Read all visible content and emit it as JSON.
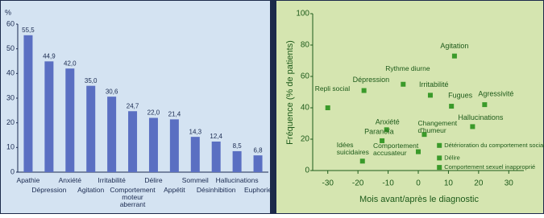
{
  "chart_data": [
    {
      "type": "bar",
      "ylabel": "%",
      "categories": [
        "Apathie",
        "Dépression",
        "Anxiété",
        "Agitation",
        "Irritabilité",
        "Comportement moteur aberrant",
        "Délire",
        "Appétit",
        "Sommeil",
        "Désinhibition",
        "Hallucinations",
        "Euphorie"
      ],
      "values": [
        55.5,
        44.9,
        42.0,
        35.0,
        30.6,
        24.7,
        22.0,
        21.4,
        14.3,
        12.4,
        8.5,
        6.8
      ],
      "value_labels": [
        "55,5",
        "44,9",
        "42,0",
        "35,0",
        "30,6",
        "24,7",
        "22,0",
        "21,4",
        "14,3",
        "12,4",
        "8,5",
        "6,8"
      ],
      "color": "#5a6fc2",
      "ylim": [
        0,
        60
      ],
      "yticks": [
        0,
        10,
        20,
        30,
        40,
        50,
        60
      ]
    },
    {
      "type": "scatter",
      "xlabel": "Mois avant/après le diagnostic",
      "ylabel": "Fréquence (% de patients)",
      "color": "#3a9a2a",
      "labels": [
        "Agitation",
        "Repli social",
        "Dépression",
        "Rythme diurne",
        "Irritabilité",
        "Fugues",
        "Agressivité",
        "Hallucinations",
        "Anxiété",
        "Changement d'humeur",
        "Paranoïa",
        "Idées suicidaires",
        "Comportement accusateur",
        "Détérioration du comportement social",
        "Délire",
        "Comportement sexuel inapproprié"
      ],
      "x": [
        12,
        -30,
        -18,
        -5,
        4,
        11,
        22,
        18,
        -10.5,
        2,
        -12,
        -18.5,
        0,
        7,
        7,
        7
      ],
      "values": [
        73,
        40,
        51,
        55,
        48,
        41,
        42,
        28,
        26,
        23,
        19,
        6,
        12,
        16,
        8,
        2
      ],
      "xlim": [
        -35,
        35
      ],
      "xticks": [
        -30,
        -20,
        -10,
        0,
        10,
        20,
        30
      ],
      "ylim": [
        0,
        100
      ],
      "yticks": [
        0,
        20,
        40,
        60,
        80,
        100
      ]
    }
  ]
}
